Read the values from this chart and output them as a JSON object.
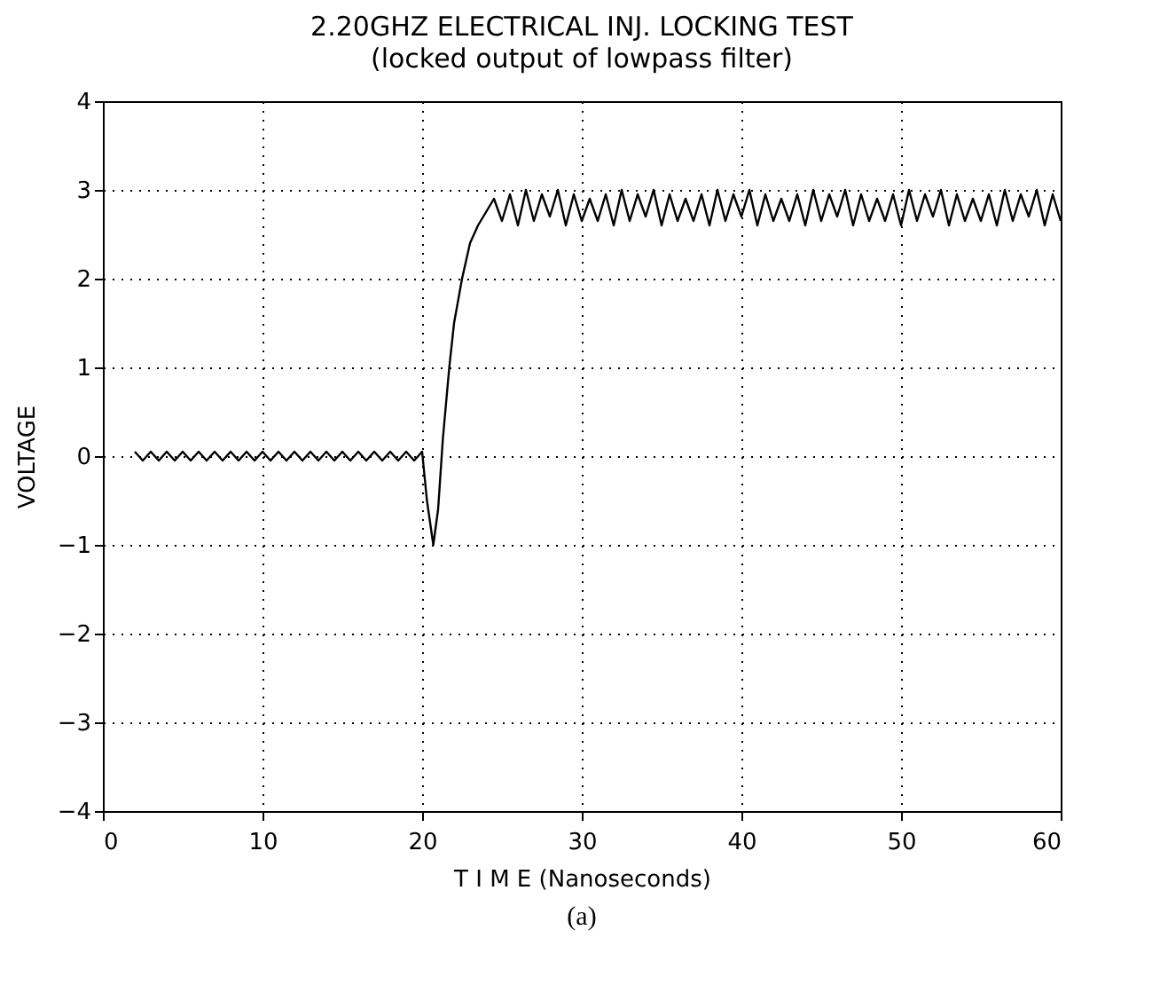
{
  "chart_data": {
    "type": "line",
    "title": "2.20GHZ ELECTRICAL INJ. LOCKING TEST",
    "subtitle": "(locked output of lowpass filter)",
    "xlabel": "T I M E    (Nanoseconds)",
    "ylabel": "VOLTAGE",
    "annotations": [
      "(a)"
    ],
    "x": [
      2,
      2.5,
      3,
      3.5,
      4,
      4.5,
      5,
      5.5,
      6,
      6.5,
      7,
      7.5,
      8,
      8.5,
      9,
      9.5,
      10,
      10.5,
      11,
      11.5,
      12,
      12.5,
      13,
      13.5,
      14,
      14.5,
      15,
      15.5,
      16,
      16.5,
      17,
      17.5,
      18,
      18.5,
      19,
      19.5,
      20,
      20.3,
      20.7,
      21,
      21.3,
      21.7,
      22,
      22.5,
      23,
      23.5,
      24,
      24.5,
      25,
      25.5,
      26,
      26.5,
      27,
      27.5,
      28,
      28.5,
      29,
      29.5,
      30,
      30.5,
      31,
      31.5,
      32,
      32.5,
      33,
      33.5,
      34,
      34.5,
      35,
      35.5,
      36,
      36.5,
      37,
      37.5,
      38,
      38.5,
      39,
      39.5,
      40,
      40.5,
      41,
      41.5,
      42,
      42.5,
      43,
      43.5,
      44,
      44.5,
      45,
      45.5,
      46,
      46.5,
      47,
      47.5,
      48,
      48.5,
      49,
      49.5,
      50,
      50.5,
      51,
      51.5,
      52,
      52.5,
      53,
      53.5,
      54,
      54.5,
      55,
      55.5,
      56,
      56.5,
      57,
      57.5,
      58,
      58.5,
      59,
      59.5,
      60
    ],
    "series": [
      {
        "color": "#000000",
        "values": [
          0.05,
          -0.05,
          0.05,
          -0.05,
          0.05,
          -0.05,
          0.05,
          -0.05,
          0.05,
          -0.05,
          0.05,
          -0.05,
          0.05,
          -0.05,
          0.05,
          -0.05,
          0.05,
          -0.05,
          0.05,
          -0.05,
          0.05,
          -0.05,
          0.05,
          -0.05,
          0.05,
          -0.05,
          0.05,
          -0.05,
          0.05,
          -0.05,
          0.05,
          -0.05,
          0.05,
          -0.05,
          0.05,
          -0.05,
          0.05,
          -0.5,
          -1.0,
          -0.6,
          0.2,
          1.0,
          1.5,
          2.0,
          2.4,
          2.6,
          2.75,
          2.9,
          2.65,
          2.95,
          2.6,
          3.0,
          2.65,
          2.95,
          2.7,
          3.0,
          2.6,
          2.95,
          2.65,
          2.9,
          2.65,
          2.95,
          2.6,
          3.0,
          2.65,
          2.95,
          2.7,
          3.0,
          2.6,
          2.95,
          2.65,
          2.9,
          2.65,
          2.95,
          2.6,
          3.0,
          2.65,
          2.95,
          2.7,
          3.0,
          2.6,
          2.95,
          2.65,
          2.9,
          2.65,
          2.95,
          2.6,
          3.0,
          2.65,
          2.95,
          2.7,
          3.0,
          2.6,
          2.95,
          2.65,
          2.9,
          2.65,
          2.95,
          2.6,
          3.0,
          2.65,
          2.95,
          2.7,
          3.0,
          2.6,
          2.95,
          2.65,
          2.9,
          2.65,
          2.95,
          2.6,
          3.0,
          2.65,
          2.95,
          2.7,
          3.0,
          2.6,
          2.95,
          2.65
        ]
      }
    ],
    "xlim": [
      0,
      60
    ],
    "xticks": [
      0,
      10,
      20,
      30,
      40,
      50,
      60
    ],
    "ylim": [
      -4,
      4
    ],
    "yticks": [
      -4,
      -3,
      -2,
      -1,
      0,
      1,
      2,
      3,
      4
    ],
    "grid": true,
    "line_style": "solid",
    "marker": "none"
  }
}
